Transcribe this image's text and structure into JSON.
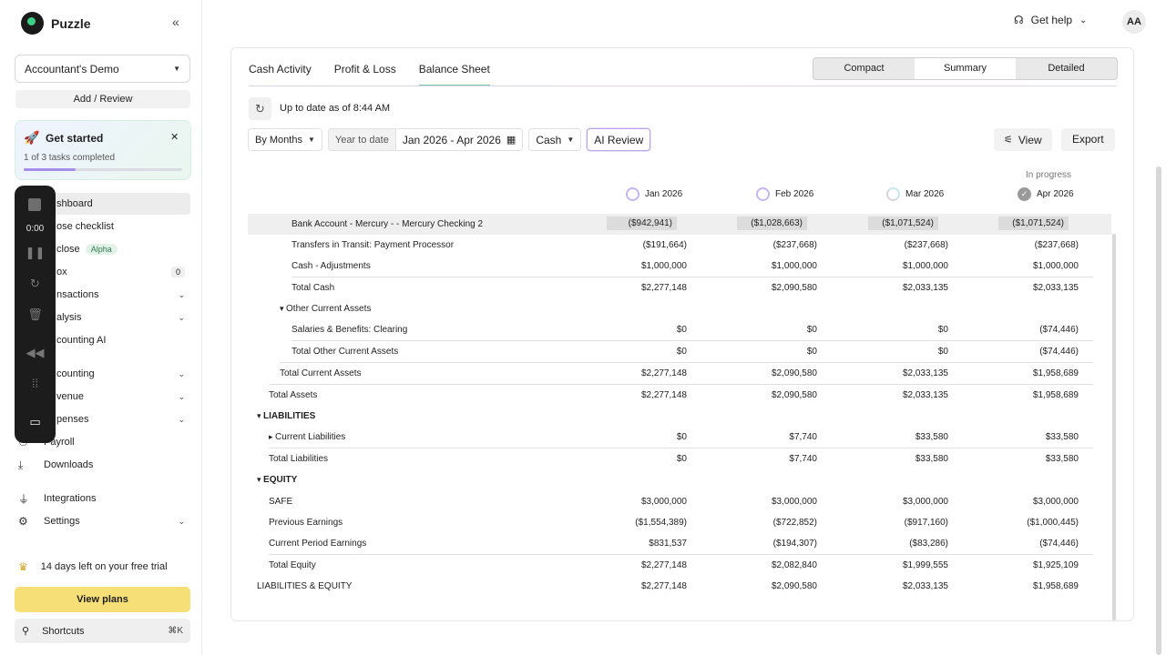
{
  "app": {
    "name": "Puzzle"
  },
  "sidebar": {
    "account": "Accountant's Demo",
    "add_review": "Add / Review",
    "get_started": {
      "title": "Get started",
      "progress_text": "1 of 3 tasks completed",
      "progress": 0.33
    },
    "items": [
      {
        "label": "shboard"
      },
      {
        "label": "ose checklist"
      },
      {
        "label": "close",
        "badge": "Alpha"
      },
      {
        "label": "ox",
        "count": "0"
      },
      {
        "label": "nsactions"
      },
      {
        "label": "alysis"
      },
      {
        "label": "counting AI"
      },
      {
        "label": "counting"
      },
      {
        "label": "venue"
      },
      {
        "label": "penses"
      },
      {
        "label": "Payroll"
      },
      {
        "label": "Downloads"
      },
      {
        "label": "Integrations"
      },
      {
        "label": "Settings"
      }
    ],
    "recorder_time": "0:00",
    "trial": "14 days left on your free trial",
    "view_plans": "View plans",
    "shortcuts": "Shortcuts",
    "shortcuts_kbd": "⌘K"
  },
  "header": {
    "help": "Get help",
    "avatar": "AA"
  },
  "tabs": [
    "Cash Activity",
    "Profit & Loss",
    "Balance Sheet"
  ],
  "views": [
    "Compact",
    "Summary",
    "Detailed"
  ],
  "status": "Up to date as of 8:44 AM",
  "filters": {
    "period": "By Months",
    "ytd": "Year to date",
    "range": "Jan 2026 - Apr 2026",
    "basis": "Cash",
    "ai": "AI Review",
    "view": "View",
    "export": "Export"
  },
  "in_progress": "In progress",
  "columns": [
    "Jan 2026",
    "Feb 2026",
    "Mar 2026",
    "Apr 2026"
  ],
  "rows": [
    {
      "label": "Bank Account - Mercury - - Mercury Checking 2",
      "values": [
        "($942,941)",
        "($1,028,663)",
        "($1,071,524)",
        "($1,071,524)"
      ]
    },
    {
      "label": "Transfers in Transit: Payment Processor",
      "values": [
        "($191,664)",
        "($237,668)",
        "($237,668)",
        "($237,668)"
      ]
    },
    {
      "label": "Cash - Adjustments",
      "values": [
        "$1,000,000",
        "$1,000,000",
        "$1,000,000",
        "$1,000,000"
      ]
    },
    {
      "label": "Total Cash",
      "values": [
        "$2,277,148",
        "$2,090,580",
        "$2,033,135",
        "$2,033,135"
      ]
    },
    {
      "label": "Other Current Assets",
      "values": [
        "",
        "",
        "",
        ""
      ]
    },
    {
      "label": "Salaries & Benefits: Clearing",
      "values": [
        "$0",
        "$0",
        "$0",
        "($74,446)"
      ]
    },
    {
      "label": "Total Other Current Assets",
      "values": [
        "$0",
        "$0",
        "$0",
        "($74,446)"
      ]
    },
    {
      "label": "Total Current Assets",
      "values": [
        "$2,277,148",
        "$2,090,580",
        "$2,033,135",
        "$1,958,689"
      ]
    },
    {
      "label": "Total Assets",
      "values": [
        "$2,277,148",
        "$2,090,580",
        "$2,033,135",
        "$1,958,689"
      ]
    },
    {
      "label": "LIABILITIES",
      "values": [
        "",
        "",
        "",
        ""
      ]
    },
    {
      "label": "Current Liabilities",
      "values": [
        "$0",
        "$7,740",
        "$33,580",
        "$33,580"
      ]
    },
    {
      "label": "Total Liabilities",
      "values": [
        "$0",
        "$7,740",
        "$33,580",
        "$33,580"
      ]
    },
    {
      "label": "EQUITY",
      "values": [
        "",
        "",
        "",
        ""
      ]
    },
    {
      "label": "SAFE",
      "values": [
        "$3,000,000",
        "$3,000,000",
        "$3,000,000",
        "$3,000,000"
      ]
    },
    {
      "label": "Previous Earnings",
      "values": [
        "($1,554,389)",
        "($722,852)",
        "($917,160)",
        "($1,000,445)"
      ]
    },
    {
      "label": "Current Period Earnings",
      "values": [
        "$831,537",
        "($194,307)",
        "($83,286)",
        "($74,446)"
      ]
    },
    {
      "label": "Total Equity",
      "values": [
        "$2,277,148",
        "$2,082,840",
        "$1,999,555",
        "$1,925,109"
      ]
    },
    {
      "label": "LIABILITIES & EQUITY",
      "values": [
        "$2,277,148",
        "$2,090,580",
        "$2,033,135",
        "$1,958,689"
      ]
    }
  ]
}
